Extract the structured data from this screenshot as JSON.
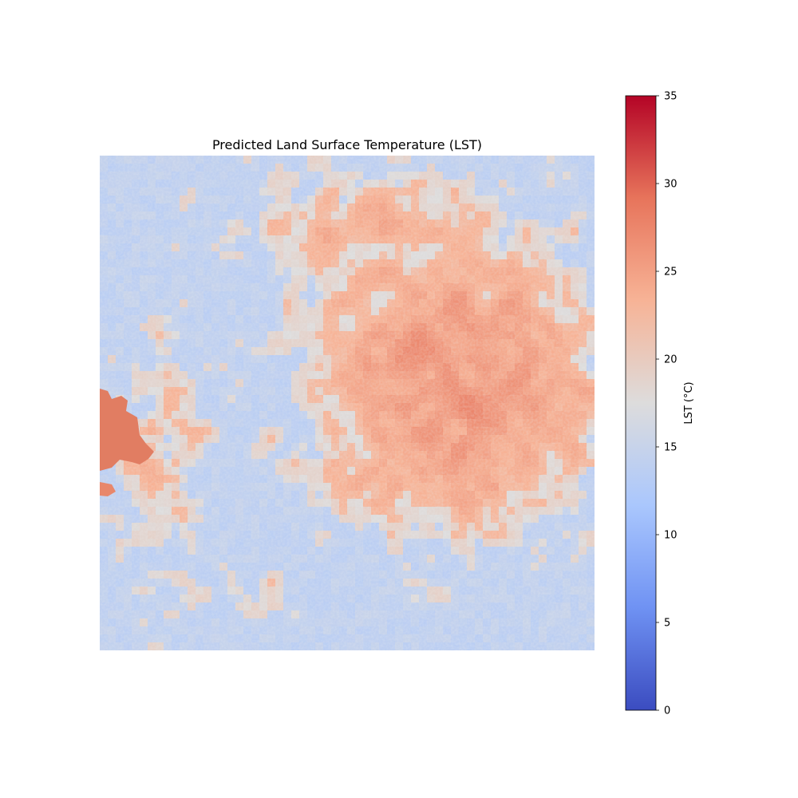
{
  "chart_data": {
    "type": "heatmap",
    "title": "Predicted Land Surface Temperature (LST)",
    "axes_visible": false,
    "colormap": "coolwarm",
    "colormap_stops": [
      "#3b4cc0",
      "#6f92f3",
      "#aac7fd",
      "#dddcdc",
      "#f7b396",
      "#e7745b",
      "#b40426"
    ],
    "colorbar": {
      "label": "LST (°C)",
      "range": [
        0,
        35
      ],
      "ticks": [
        0,
        5,
        10,
        15,
        20,
        25,
        30,
        35
      ],
      "tick_labels": [
        "0",
        "5",
        "10",
        "15",
        "20",
        "25",
        "30",
        "35"
      ]
    },
    "value_range_observed": [
      14,
      30
    ],
    "features": [
      {
        "name": "water body (west)",
        "value": 28
      },
      {
        "name": "urban core (north-east)",
        "value": 26
      },
      {
        "name": "vegetation / rural",
        "value": 15
      }
    ]
  }
}
